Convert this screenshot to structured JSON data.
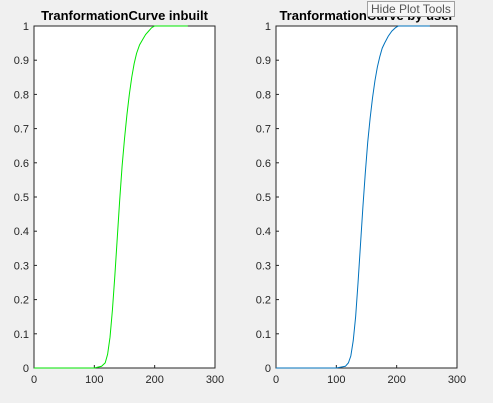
{
  "tooltip": {
    "text": "Hide Plot Tools"
  },
  "chart_data": [
    {
      "type": "line",
      "title": "TranformationCurve inbuilt",
      "xlim": [
        0,
        300
      ],
      "ylim": [
        0,
        1
      ],
      "xticks": [
        0,
        100,
        200,
        300
      ],
      "yticks": [
        0,
        0.1,
        0.2,
        0.3,
        0.4,
        0.5,
        0.6,
        0.7,
        0.8,
        0.9,
        1
      ],
      "grid": false,
      "series": [
        {
          "color": "#00e600",
          "x": [
            0,
            100,
            112,
            118,
            122,
            126,
            130,
            134,
            138,
            142,
            146,
            150,
            154,
            158,
            162,
            166,
            170,
            175,
            180,
            185,
            190,
            195,
            200,
            210,
            230,
            255
          ],
          "y": [
            0,
            0,
            0.005,
            0.015,
            0.04,
            0.09,
            0.17,
            0.27,
            0.38,
            0.49,
            0.59,
            0.67,
            0.74,
            0.8,
            0.85,
            0.89,
            0.92,
            0.945,
            0.96,
            0.975,
            0.985,
            0.995,
            1,
            1,
            1,
            1
          ]
        }
      ]
    },
    {
      "type": "line",
      "title": "TranformationCurve by user",
      "xlim": [
        0,
        300
      ],
      "ylim": [
        0,
        1
      ],
      "xticks": [
        0,
        100,
        200,
        300
      ],
      "yticks": [
        0,
        0.1,
        0.2,
        0.3,
        0.4,
        0.5,
        0.6,
        0.7,
        0.8,
        0.9,
        1
      ],
      "grid": false,
      "series": [
        {
          "color": "#0072bd",
          "x": [
            0,
            100,
            115,
            120,
            124,
            128,
            132,
            136,
            140,
            144,
            148,
            152,
            156,
            160,
            164,
            168,
            172,
            176,
            180,
            186,
            192,
            198,
            203,
            210,
            230,
            255
          ],
          "y": [
            0,
            0,
            0.005,
            0.015,
            0.035,
            0.08,
            0.15,
            0.25,
            0.36,
            0.47,
            0.57,
            0.66,
            0.73,
            0.79,
            0.84,
            0.88,
            0.91,
            0.935,
            0.95,
            0.97,
            0.985,
            0.995,
            1,
            1,
            1,
            1
          ]
        }
      ]
    }
  ]
}
